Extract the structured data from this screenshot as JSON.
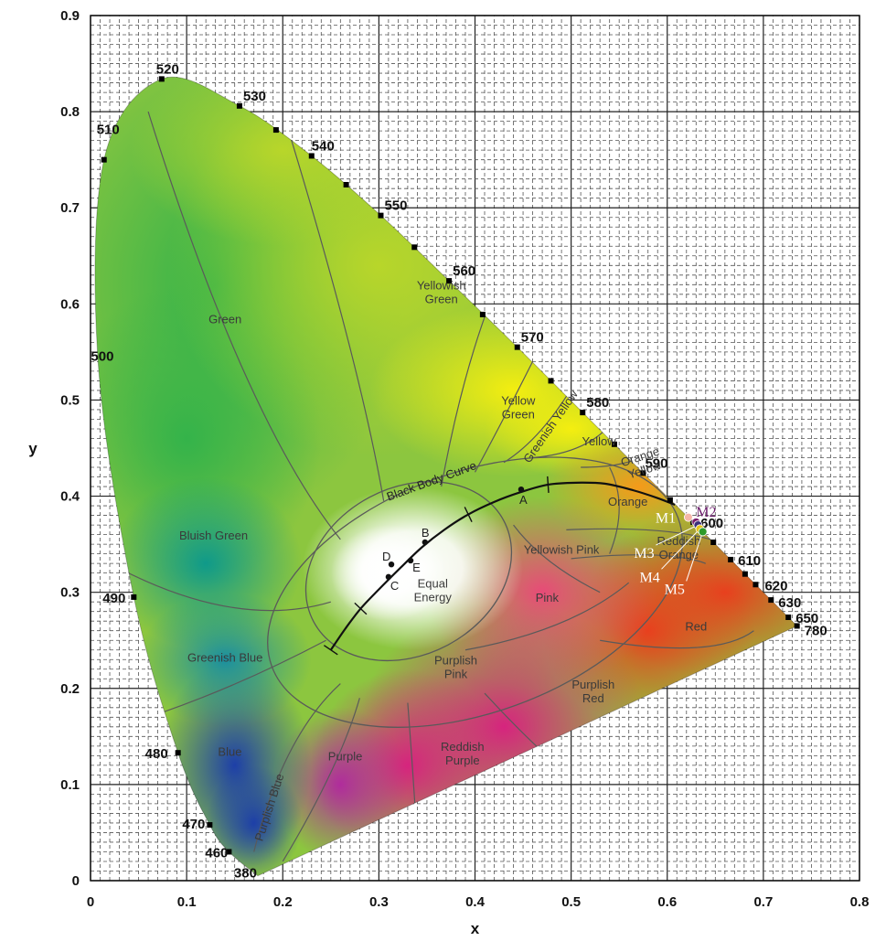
{
  "chart_data": {
    "type": "scatter",
    "title": "",
    "xlabel": "x",
    "ylabel": "y",
    "xlim": [
      0,
      0.8
    ],
    "ylim": [
      0,
      0.9
    ],
    "x_ticks": [
      "0",
      "0.1",
      "0.2",
      "0.3",
      "0.4",
      "0.5",
      "0.6",
      "0.7",
      "0.8"
    ],
    "y_ticks": [
      "0",
      "0.1",
      "0.2",
      "0.3",
      "0.4",
      "0.5",
      "0.6",
      "0.7",
      "0.8",
      "0.9"
    ],
    "grid": true,
    "spectral_locus": [
      {
        "label": "380",
        "x": 0.174,
        "y": 0.005
      },
      {
        "label": "460",
        "x": 0.144,
        "y": 0.03
      },
      {
        "label": "470",
        "x": 0.124,
        "y": 0.058
      },
      {
        "label": "480",
        "x": 0.091,
        "y": 0.133
      },
      {
        "label": "490",
        "x": 0.045,
        "y": 0.295
      },
      {
        "label": "500",
        "x": 0.008,
        "y": 0.538
      },
      {
        "label": "510",
        "x": 0.014,
        "y": 0.75
      },
      {
        "label": "520",
        "x": 0.074,
        "y": 0.834
      },
      {
        "label": "530",
        "x": 0.155,
        "y": 0.806
      },
      {
        "label": "540",
        "x": 0.23,
        "y": 0.754
      },
      {
        "label": "550",
        "x": 0.302,
        "y": 0.692
      },
      {
        "label": "560",
        "x": 0.373,
        "y": 0.624
      },
      {
        "label": "570",
        "x": 0.444,
        "y": 0.555
      },
      {
        "label": "580",
        "x": 0.512,
        "y": 0.487
      },
      {
        "label": "590",
        "x": 0.575,
        "y": 0.424
      },
      {
        "label": "600",
        "x": 0.627,
        "y": 0.373
      },
      {
        "label": "610",
        "x": 0.666,
        "y": 0.334
      },
      {
        "label": "620",
        "x": 0.692,
        "y": 0.308
      },
      {
        "label": "630",
        "x": 0.708,
        "y": 0.292
      },
      {
        "label": "650",
        "x": 0.726,
        "y": 0.274
      },
      {
        "label": "780",
        "x": 0.735,
        "y": 0.265
      }
    ],
    "locus_ticks": [
      {
        "x": 0.014,
        "y": 0.75
      },
      {
        "x": 0.074,
        "y": 0.834
      },
      {
        "x": 0.155,
        "y": 0.806
      },
      {
        "x": 0.193,
        "y": 0.781
      },
      {
        "x": 0.23,
        "y": 0.754
      },
      {
        "x": 0.266,
        "y": 0.724
      },
      {
        "x": 0.302,
        "y": 0.692
      },
      {
        "x": 0.337,
        "y": 0.659
      },
      {
        "x": 0.373,
        "y": 0.624
      },
      {
        "x": 0.408,
        "y": 0.589
      },
      {
        "x": 0.444,
        "y": 0.555
      },
      {
        "x": 0.479,
        "y": 0.52
      },
      {
        "x": 0.512,
        "y": 0.487
      },
      {
        "x": 0.545,
        "y": 0.454
      },
      {
        "x": 0.575,
        "y": 0.424
      },
      {
        "x": 0.603,
        "y": 0.396
      },
      {
        "x": 0.627,
        "y": 0.373
      },
      {
        "x": 0.648,
        "y": 0.352
      },
      {
        "x": 0.666,
        "y": 0.334
      },
      {
        "x": 0.681,
        "y": 0.319
      },
      {
        "x": 0.692,
        "y": 0.308
      },
      {
        "x": 0.708,
        "y": 0.292
      },
      {
        "x": 0.726,
        "y": 0.274
      },
      {
        "x": 0.735,
        "y": 0.265
      },
      {
        "x": 0.045,
        "y": 0.295
      },
      {
        "x": 0.091,
        "y": 0.133
      },
      {
        "x": 0.124,
        "y": 0.058
      },
      {
        "x": 0.144,
        "y": 0.03
      }
    ],
    "regions": [
      {
        "label": "Yellowish Green",
        "lines": [
          "Yellowish",
          "Green"
        ],
        "x": 0.365,
        "y": 0.615
      },
      {
        "label": "Green",
        "lines": [
          "Green"
        ],
        "x": 0.14,
        "y": 0.58
      },
      {
        "label": "Yellow Green",
        "lines": [
          "Yellow",
          "Green"
        ],
        "x": 0.445,
        "y": 0.495
      },
      {
        "label": "Greenish Yellow",
        "lines": [
          "Greenish Yellow"
        ],
        "x": 0.482,
        "y": 0.47,
        "rotate": -55
      },
      {
        "label": "Yellow",
        "lines": [
          "Yellow"
        ],
        "x": 0.529,
        "y": 0.453
      },
      {
        "label": "Orange Yellow",
        "lines": [
          "Orange",
          "Yellow"
        ],
        "x": 0.573,
        "y": 0.437,
        "rotate": -18
      },
      {
        "label": "Orange",
        "lines": [
          "Orange"
        ],
        "x": 0.559,
        "y": 0.39
      },
      {
        "label": "Reddish Orange",
        "lines": [
          "Reddish",
          "Orange"
        ],
        "x": 0.612,
        "y": 0.349
      },
      {
        "label": "Yellowish Pink",
        "lines": [
          "Yellowish Pink"
        ],
        "x": 0.49,
        "y": 0.34
      },
      {
        "label": "Pink",
        "lines": [
          "Pink"
        ],
        "x": 0.475,
        "y": 0.29
      },
      {
        "label": "Red",
        "lines": [
          "Red"
        ],
        "x": 0.63,
        "y": 0.26
      },
      {
        "label": "Bluish Green",
        "lines": [
          "Bluish Green"
        ],
        "x": 0.128,
        "y": 0.355
      },
      {
        "label": "Equal Energy",
        "lines": [
          "Equal",
          "Energy"
        ],
        "x": 0.356,
        "y": 0.305
      },
      {
        "label": "Purplish Pink",
        "lines": [
          "Purplish",
          "Pink"
        ],
        "x": 0.38,
        "y": 0.225
      },
      {
        "label": "Purplish Red",
        "lines": [
          "Purplish",
          "Red"
        ],
        "x": 0.523,
        "y": 0.2
      },
      {
        "label": "Greenish Blue",
        "lines": [
          "Greenish Blue"
        ],
        "x": 0.14,
        "y": 0.228
      },
      {
        "label": "Reddish Purple",
        "lines": [
          "Reddish",
          "Purple"
        ],
        "x": 0.387,
        "y": 0.135
      },
      {
        "label": "Blue",
        "lines": [
          "Blue"
        ],
        "x": 0.145,
        "y": 0.13
      },
      {
        "label": "Purple",
        "lines": [
          "Purple"
        ],
        "x": 0.265,
        "y": 0.125
      },
      {
        "label": "Purplish Blue",
        "lines": [
          "Purplish Blue"
        ],
        "x": 0.19,
        "y": 0.075,
        "rotate": -72
      }
    ],
    "black_body_curve": {
      "label": "Black Body Curve",
      "points": [
        {
          "x": 0.25,
          "y": 0.24
        },
        {
          "x": 0.265,
          "y": 0.262
        },
        {
          "x": 0.281,
          "y": 0.283
        },
        {
          "x": 0.3,
          "y": 0.303
        },
        {
          "x": 0.323,
          "y": 0.326
        },
        {
          "x": 0.345,
          "y": 0.347
        },
        {
          "x": 0.368,
          "y": 0.365
        },
        {
          "x": 0.393,
          "y": 0.381
        },
        {
          "x": 0.42,
          "y": 0.394
        },
        {
          "x": 0.447,
          "y": 0.404
        },
        {
          "x": 0.476,
          "y": 0.412
        },
        {
          "x": 0.505,
          "y": 0.414
        },
        {
          "x": 0.535,
          "y": 0.413
        },
        {
          "x": 0.565,
          "y": 0.406
        },
        {
          "x": 0.59,
          "y": 0.398
        },
        {
          "x": 0.608,
          "y": 0.391
        }
      ]
    },
    "illuminants": [
      {
        "label": "A",
        "x": 0.448,
        "y": 0.407
      },
      {
        "label": "B",
        "x": 0.348,
        "y": 0.352
      },
      {
        "label": "C",
        "x": 0.31,
        "y": 0.316
      },
      {
        "label": "D",
        "x": 0.313,
        "y": 0.329
      },
      {
        "label": "E",
        "x": 0.333,
        "y": 0.333
      }
    ],
    "series": [
      {
        "name": "M1",
        "x": 0.622,
        "y": 0.378,
        "color": "#f5b7a8"
      },
      {
        "name": "M2",
        "x": 0.63,
        "y": 0.373,
        "color": "#7a1f6e"
      },
      {
        "name": "M3",
        "x": 0.632,
        "y": 0.37,
        "color": "#3a2f7a"
      },
      {
        "name": "M4",
        "x": 0.634,
        "y": 0.366,
        "color": "#e6c21a"
      },
      {
        "name": "M5",
        "x": 0.637,
        "y": 0.363,
        "color": "#2e9b2a"
      }
    ],
    "colors": {
      "locus_marker": "#000000",
      "grid_major": "#222222",
      "grid_minor": "#555555",
      "region_line": "#5a5a5a",
      "curve": "#111111"
    }
  }
}
